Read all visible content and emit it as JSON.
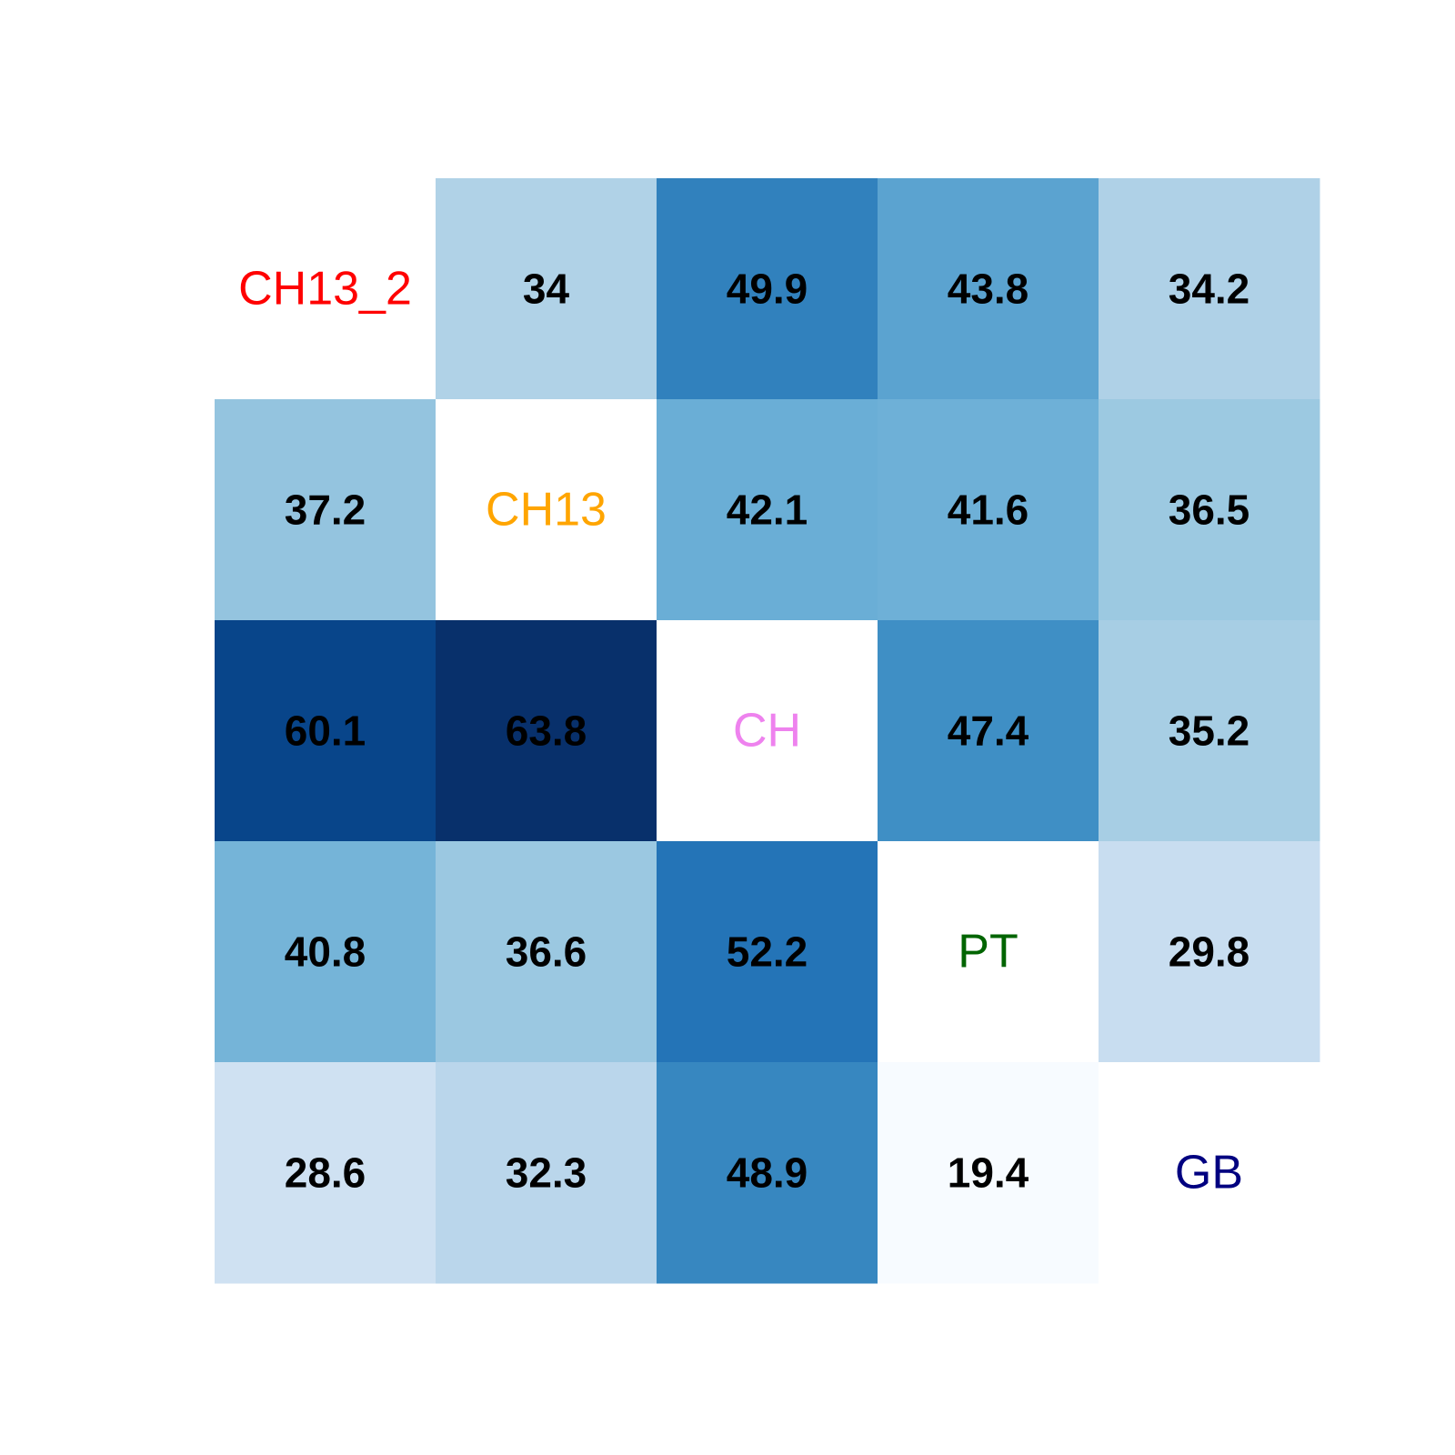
{
  "chart_data": {
    "type": "heatmap",
    "title": "",
    "xlabel": "",
    "ylabel": "",
    "labels": [
      "CH13_2",
      "CH13",
      "CH",
      "PT",
      "GB"
    ],
    "label_colors": [
      "#ff0000",
      "#ffa500",
      "#ee82ee",
      "#006400",
      "#000080"
    ],
    "matrix": [
      [
        null,
        34,
        49.9,
        43.8,
        34.2
      ],
      [
        37.2,
        null,
        42.1,
        41.6,
        36.5
      ],
      [
        60.1,
        63.8,
        null,
        47.4,
        35.2
      ],
      [
        40.8,
        36.6,
        52.2,
        null,
        29.8
      ],
      [
        28.6,
        32.3,
        48.9,
        19.4,
        null
      ]
    ],
    "colormap": "Blues",
    "value_range": [
      19.4,
      63.8
    ],
    "colormap_stops": [
      {
        "value": 19.4,
        "color": "#f7fbff"
      },
      {
        "value": 28.6,
        "color": "#cfe1f2"
      },
      {
        "value": 32.3,
        "color": "#bad6eb"
      },
      {
        "value": 34.2,
        "color": "#afd1e7"
      },
      {
        "value": 36.5,
        "color": "#9cc9e1"
      },
      {
        "value": 37.2,
        "color": "#94c4df"
      },
      {
        "value": 40.8,
        "color": "#75b4d8"
      },
      {
        "value": 42.1,
        "color": "#6aaed6"
      },
      {
        "value": 43.8,
        "color": "#5ba3d0"
      },
      {
        "value": 47.4,
        "color": "#3f8fc5"
      },
      {
        "value": 48.9,
        "color": "#3787c0"
      },
      {
        "value": 49.9,
        "color": "#3181bd"
      },
      {
        "value": 52.2,
        "color": "#2474b7"
      },
      {
        "value": 60.1,
        "color": "#08458a"
      },
      {
        "value": 63.8,
        "color": "#08306b"
      }
    ],
    "diagonal_fill": "#ffffff",
    "grid": false,
    "legend": "none"
  }
}
